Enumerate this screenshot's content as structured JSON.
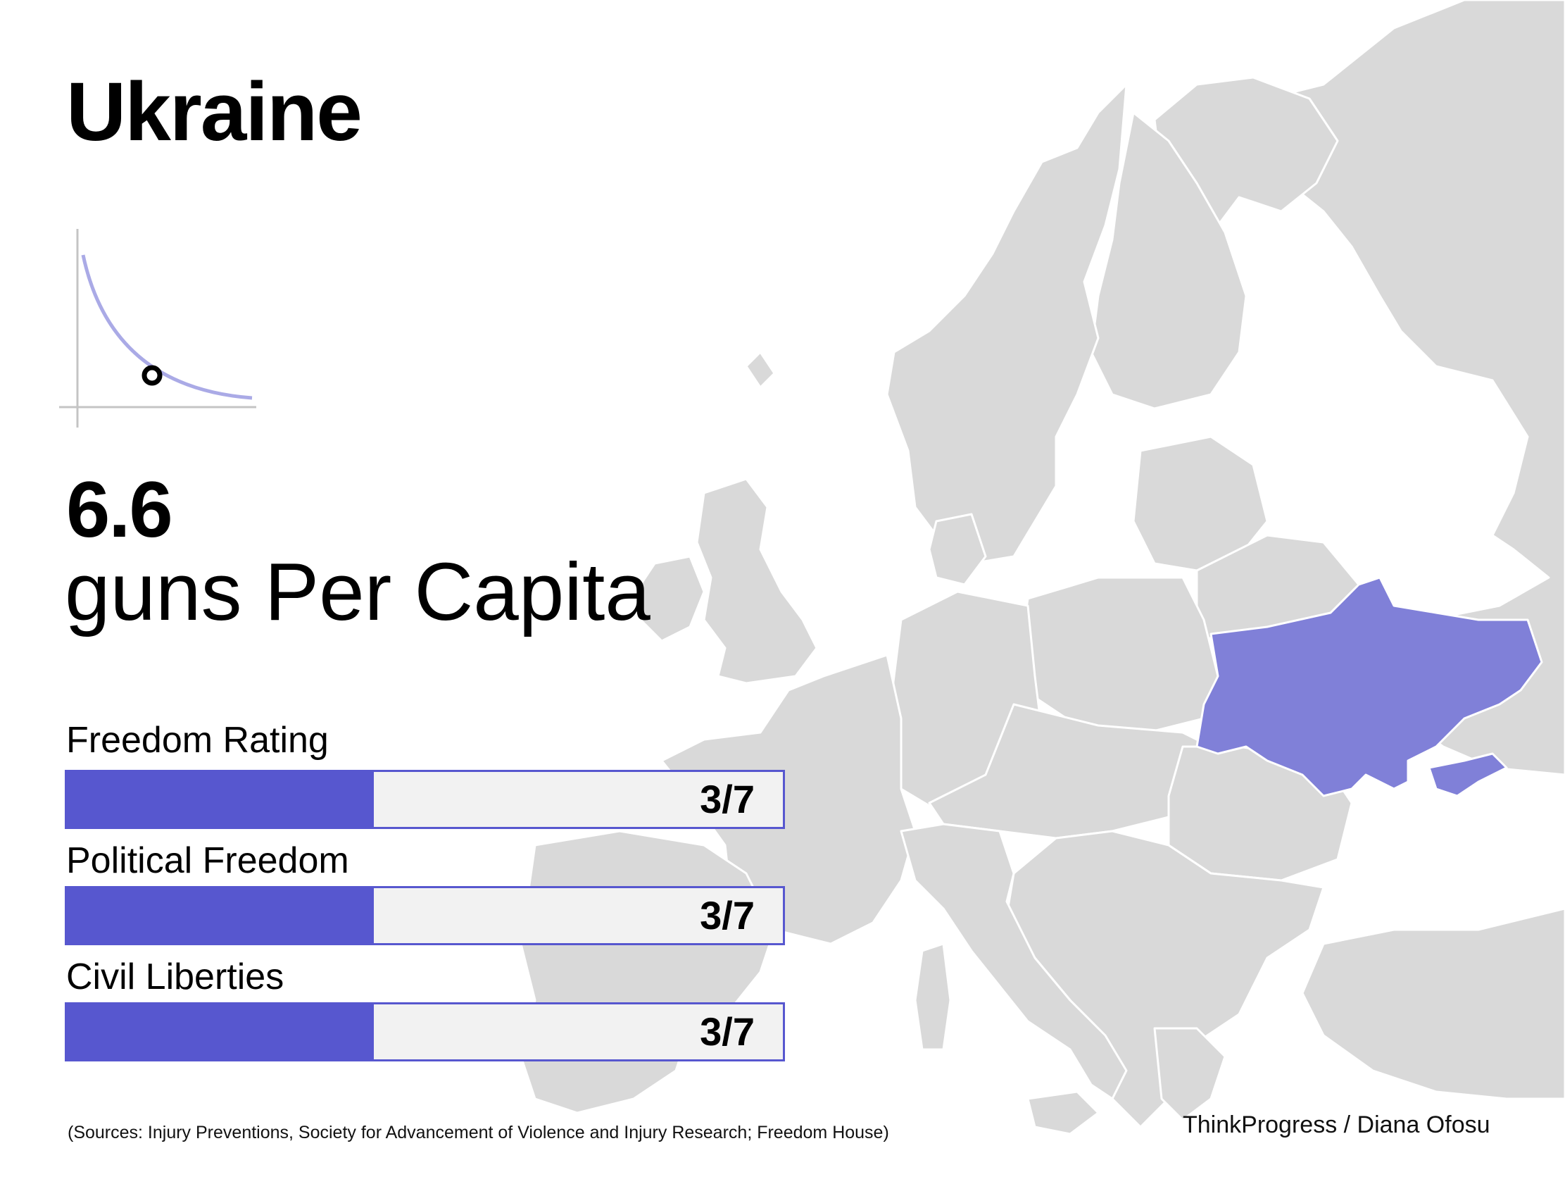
{
  "title": "Ukraine",
  "colors": {
    "accent": "#5757cf",
    "highlight_country": "#8080d8",
    "map_land": "#d9d9d9",
    "bar_track": "#f2f2f2",
    "curve": "#aaaae6"
  },
  "mini_chart": {
    "type": "line",
    "description_icon": "decay-curve-with-marker",
    "marker_position_fraction": 0.4
  },
  "stat": {
    "value": "6.6",
    "label": "guns Per Capita"
  },
  "ratings": [
    {
      "label": "Freedom Rating",
      "value_text": "3/7",
      "score": 3,
      "max": 7
    },
    {
      "label": "Political Freedom",
      "value_text": "3/7",
      "score": 3,
      "max": 7
    },
    {
      "label": "Civil Liberties",
      "value_text": "3/7",
      "score": 3,
      "max": 7
    }
  ],
  "highlighted_country": "Ukraine",
  "sources": "(Sources: Injury Preventions, Society for Advancement of Violence and Injury Research; Freedom House)",
  "credit": "ThinkProgress / Diana Ofosu"
}
